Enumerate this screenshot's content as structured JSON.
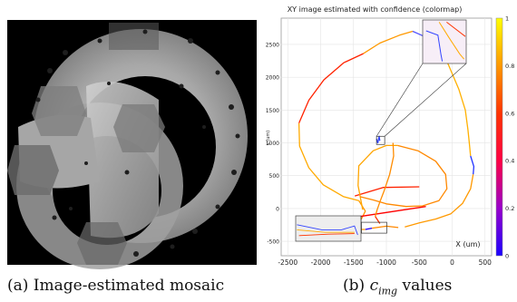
{
  "captions": {
    "a": "(a) Image-estimated mosaic",
    "b_prefix": "(b) ",
    "b_math": "c",
    "b_sub": "img",
    "b_suffix": " values"
  },
  "chart_data": {
    "type": "line",
    "title": "XY image estimated with confidence (colormap)",
    "xlabel": "X (um)",
    "ylabel": "y (um)",
    "xlim": [
      -2600,
      600
    ],
    "ylim": [
      -720,
      2900
    ],
    "xticks": [
      -2500,
      -2000,
      -1500,
      -1000,
      -500,
      0,
      500
    ],
    "yticks": [
      -500,
      0,
      500,
      1000,
      1500,
      2000,
      2500
    ],
    "colorbar": {
      "ticks": [
        0,
        0.2,
        0.4,
        0.6,
        0.8,
        1
      ],
      "colors": [
        "#1a00ff",
        "#9900cc",
        "#ff0044",
        "#ff3300",
        "#ff9900",
        "#ffff00"
      ]
    },
    "series": [
      {
        "color": "#ff9900",
        "points": [
          [
            -1350,
            2360
          ],
          [
            -1100,
            2520
          ],
          [
            -800,
            2640
          ],
          [
            -600,
            2700
          ]
        ]
      },
      {
        "color": "#5555ff",
        "points": [
          [
            -600,
            2700
          ],
          [
            -420,
            2620
          ]
        ]
      },
      {
        "color": "#ffb000",
        "points": [
          [
            -420,
            2620
          ],
          [
            -250,
            2480
          ],
          [
            -60,
            2200
          ],
          [
            100,
            1820
          ],
          [
            200,
            1500
          ],
          [
            240,
            1200
          ],
          [
            260,
            1000
          ],
          [
            280,
            800
          ]
        ]
      },
      {
        "color": "#2233ff",
        "points": [
          [
            280,
            800
          ],
          [
            330,
            640
          ],
          [
            320,
            520
          ]
        ]
      },
      {
        "color": "#ff9900",
        "points": [
          [
            320,
            520
          ],
          [
            280,
            300
          ],
          [
            160,
            80
          ],
          [
            -20,
            -80
          ],
          [
            -250,
            -160
          ],
          [
            -500,
            -220
          ],
          [
            -720,
            -280
          ]
        ]
      },
      {
        "color": "#ff2200",
        "points": [
          [
            -1350,
            2360
          ],
          [
            -1650,
            2220
          ],
          [
            -1950,
            1960
          ],
          [
            -2180,
            1650
          ],
          [
            -2330,
            1300
          ]
        ]
      },
      {
        "color": "#ffaa00",
        "points": [
          [
            -2330,
            1300
          ],
          [
            -2320,
            950
          ],
          [
            -2180,
            620
          ],
          [
            -1960,
            360
          ],
          [
            -1650,
            180
          ],
          [
            -1420,
            120
          ]
        ]
      },
      {
        "color": "#ff9900",
        "points": [
          [
            -1420,
            120
          ],
          [
            -1320,
            -40
          ],
          [
            -1380,
            -160
          ],
          [
            -1500,
            -220
          ],
          [
            -1570,
            -280
          ],
          [
            -1430,
            -320
          ],
          [
            -1320,
            -320
          ]
        ]
      },
      {
        "color": "#2200ff",
        "points": [
          [
            -1320,
            -320
          ],
          [
            -1220,
            -300
          ]
        ]
      },
      {
        "color": "#ff8800",
        "points": [
          [
            -1220,
            -300
          ],
          [
            -1000,
            -270
          ],
          [
            -820,
            -290
          ]
        ]
      },
      {
        "color": "#ff0000",
        "points": [
          [
            -1580,
            -150
          ],
          [
            -400,
            30
          ]
        ]
      },
      {
        "color": "#ff2200",
        "points": [
          [
            -1480,
            190
          ],
          [
            -1050,
            320
          ],
          [
            -500,
            330
          ]
        ]
      },
      {
        "color": "#ffa500",
        "points": [
          [
            -1360,
            -20
          ],
          [
            -1430,
            350
          ],
          [
            -1420,
            650
          ],
          [
            -1200,
            880
          ],
          [
            -1000,
            960
          ],
          [
            -830,
            960
          ]
        ]
      },
      {
        "color": "#ff8800",
        "points": [
          [
            -830,
            960
          ],
          [
            -520,
            880
          ],
          [
            -250,
            720
          ],
          [
            -100,
            520
          ],
          [
            -80,
            300
          ],
          [
            -200,
            120
          ],
          [
            -450,
            40
          ],
          [
            -700,
            30
          ],
          [
            -1000,
            70
          ],
          [
            -1200,
            130
          ],
          [
            -1400,
            180
          ]
        ]
      },
      {
        "color": "#ff8c00",
        "points": [
          [
            -900,
            1000
          ],
          [
            -890,
            800
          ],
          [
            -950,
            520
          ],
          [
            -1030,
            280
          ],
          [
            -1100,
            100
          ],
          [
            -1140,
            -20
          ],
          [
            -1170,
            -120
          ]
        ]
      },
      {
        "color": "#ff3000",
        "points": [
          [
            -1170,
            -120
          ],
          [
            -1100,
            -230
          ]
        ]
      },
      {
        "color": "#3344ff",
        "points": [
          [
            -1150,
            1060
          ],
          [
            -1130,
            1000
          ],
          [
            -1110,
            1100
          ],
          [
            -1100,
            1030
          ]
        ]
      }
    ],
    "inset_top": {
      "series": [
        {
          "color": "#3344ff",
          "points": [
            [
              0.08,
              0.25
            ],
            [
              0.35,
              0.35
            ],
            [
              0.42,
              0.8
            ],
            [
              0.45,
              0.95
            ]
          ]
        },
        {
          "color": "#ffaa00",
          "points": [
            [
              0.38,
              0.05
            ],
            [
              0.6,
              0.4
            ],
            [
              0.85,
              0.78
            ],
            [
              0.95,
              0.9
            ]
          ]
        },
        {
          "color": "#ff3300",
          "points": [
            [
              0.55,
              0.05
            ],
            [
              0.98,
              0.38
            ]
          ]
        }
      ]
    },
    "inset_bottom": {
      "series": [
        {
          "color": "#3344ff",
          "points": [
            [
              0.02,
              0.35
            ],
            [
              0.4,
              0.55
            ],
            [
              0.7,
              0.55
            ],
            [
              0.9,
              0.4
            ],
            [
              0.95,
              0.75
            ]
          ]
        },
        {
          "color": "#ffaa00",
          "points": [
            [
              0.02,
              0.55
            ],
            [
              0.45,
              0.65
            ],
            [
              0.9,
              0.65
            ]
          ]
        },
        {
          "color": "#ff3300",
          "points": [
            [
              0.05,
              0.78
            ],
            [
              0.5,
              0.72
            ],
            [
              0.9,
              0.7
            ]
          ]
        }
      ]
    }
  }
}
